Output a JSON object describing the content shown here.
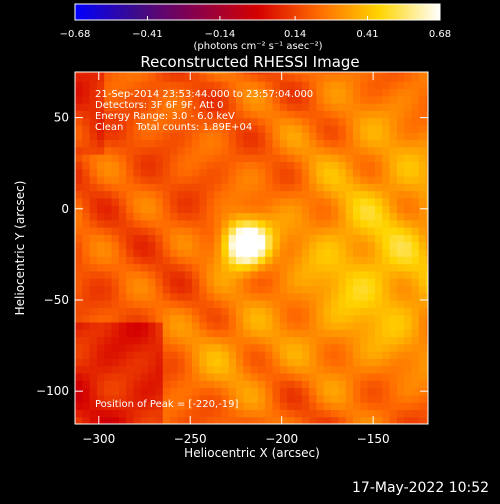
{
  "chart_data": {
    "type": "heatmap",
    "title": "Reconstructed RHESSI Image",
    "xlabel": "Heliocentric X (arcsec)",
    "ylabel": "Heliocentric Y (arcsec)",
    "xlim": [
      -313,
      -120
    ],
    "ylim": [
      -118,
      75
    ],
    "x_ticks": [
      -300,
      -250,
      -200,
      -150
    ],
    "x_tick_labels": [
      "−300",
      "−250",
      "−200",
      "−150"
    ],
    "y_ticks": [
      50,
      0,
      -50,
      -100
    ],
    "y_tick_labels": [
      "50",
      "0",
      "−50",
      "−100"
    ],
    "colorbar": {
      "range": [
        -0.68,
        0.68
      ],
      "ticks": [
        -0.68,
        -0.41,
        -0.14,
        0.14,
        0.41,
        0.68
      ],
      "tick_labels": [
        "−0.68",
        "−0.41",
        "−0.14",
        "0.14",
        "0.41",
        "0.68"
      ],
      "unit_label": "(photons cm⁻² s⁻¹ asec⁻²)",
      "colors": [
        "#0000ff",
        "#3d0b8a",
        "#8a004a",
        "#d40000",
        "#ff6a00",
        "#ffd400",
        "#ffffff"
      ]
    },
    "annotations": {
      "time_range": "21-Sep-2014 23:53:44.000 to 23:57:04.000",
      "detectors": "Detectors: 3F 6F 9F, Att 0",
      "energy_range": "Energy Range: 3.0 - 6.0 keV",
      "clean_counts": "Clean    Total counts: 1.89E+04",
      "peak_position": "Position of Peak = [-220,-19]"
    },
    "peak": {
      "x": -220,
      "y": -19,
      "value": 0.68
    },
    "sources": [
      {
        "x": -220,
        "y": -19,
        "amp": 1.0,
        "sigma": 9
      },
      {
        "x": -150,
        "y": -45,
        "amp": 0.3,
        "sigma": 35
      },
      {
        "x": -140,
        "y": 20,
        "amp": 0.18,
        "sigma": 40
      },
      {
        "x": -230,
        "y": -80,
        "amp": 0.18,
        "sigma": 20
      }
    ],
    "background": 0.28
  },
  "footer": {
    "timestamp": "17-May-2022 10:52"
  }
}
